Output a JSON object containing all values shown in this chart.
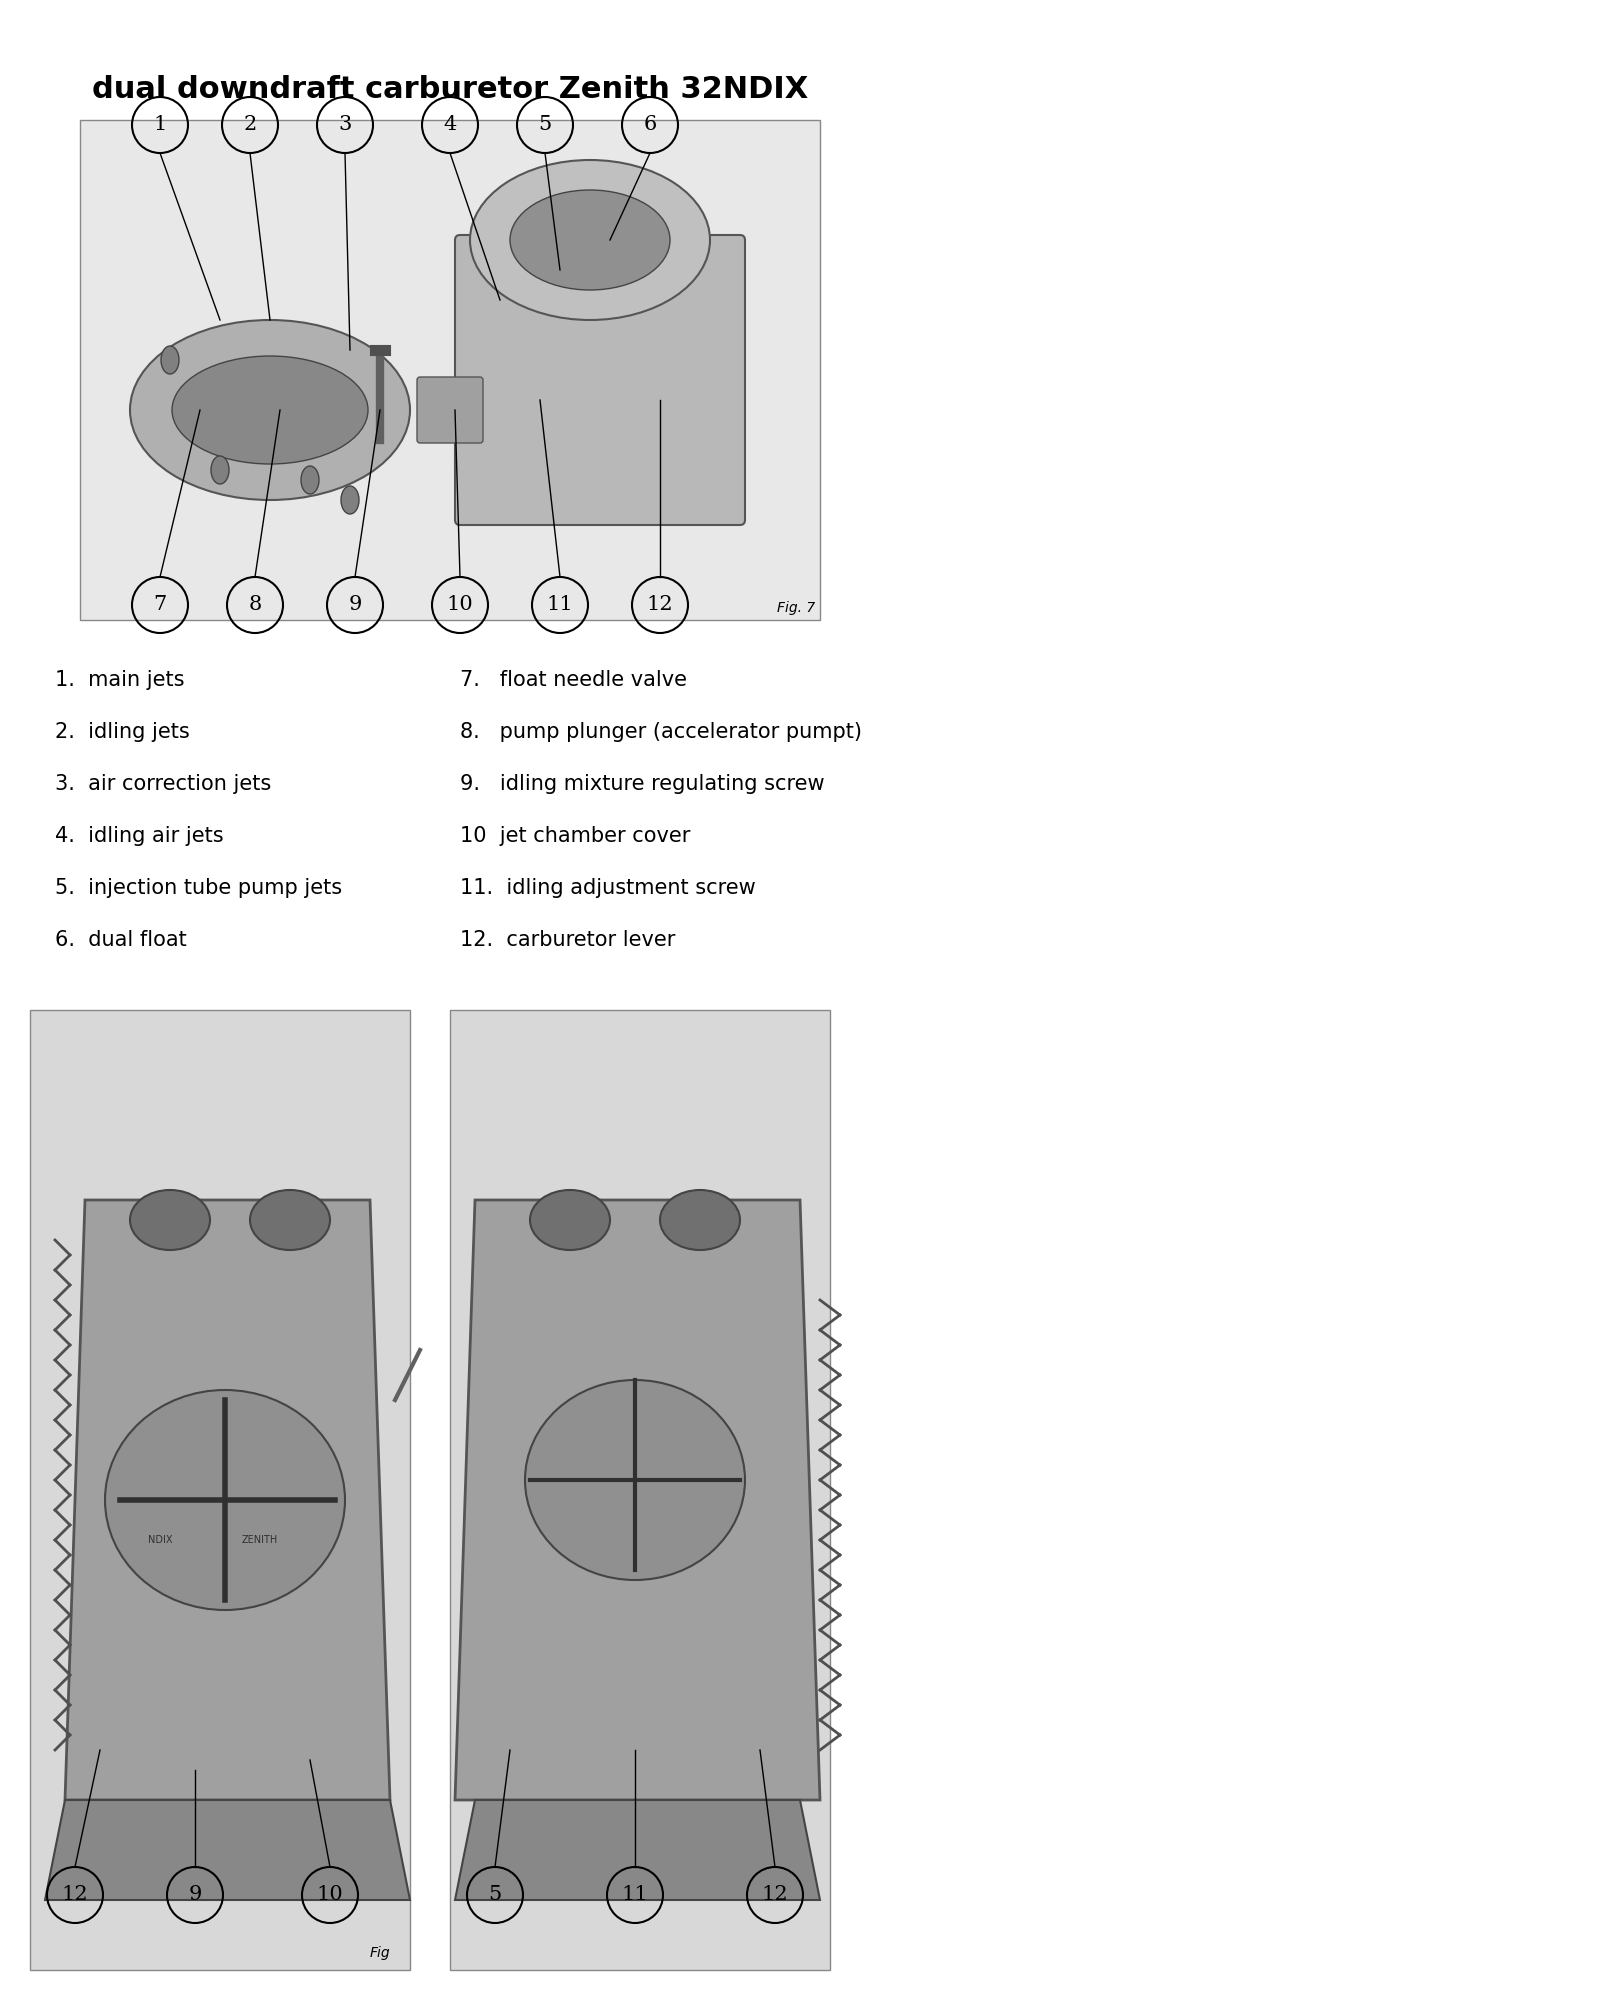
{
  "title": "dual downdraft carburetor Zenith 32NDIX",
  "title_fontsize": 22,
  "title_style": "bold",
  "background_color": "#ffffff",
  "fig_caption_top": "Fig. 7",
  "fig_caption_bottom_left": "Fig",
  "text_color": "#000000",
  "legend_items_left": [
    "1.  main jets",
    "2.  idling jets",
    "3.  air correction jets",
    "4.  idling air jets",
    "5.  injection tube pump jets",
    "6.  dual float"
  ],
  "legend_items_right": [
    "7.   float needle valve",
    "8.   pump plunger (accelerator pumpt)",
    "9.   idling mixture regulating screw",
    "10  jet chamber cover",
    "11.  idling adjustment screw",
    "12.  carburetor lever"
  ],
  "callout_circles_top": [
    "1",
    "2",
    "3",
    "4",
    "5",
    "6",
    "7",
    "8",
    "9",
    "10",
    "11",
    "12"
  ],
  "callout_circles_bottom_left": [
    "12",
    "9",
    "10"
  ],
  "callout_circles_bottom_right": [
    "5",
    "11",
    "12"
  ]
}
